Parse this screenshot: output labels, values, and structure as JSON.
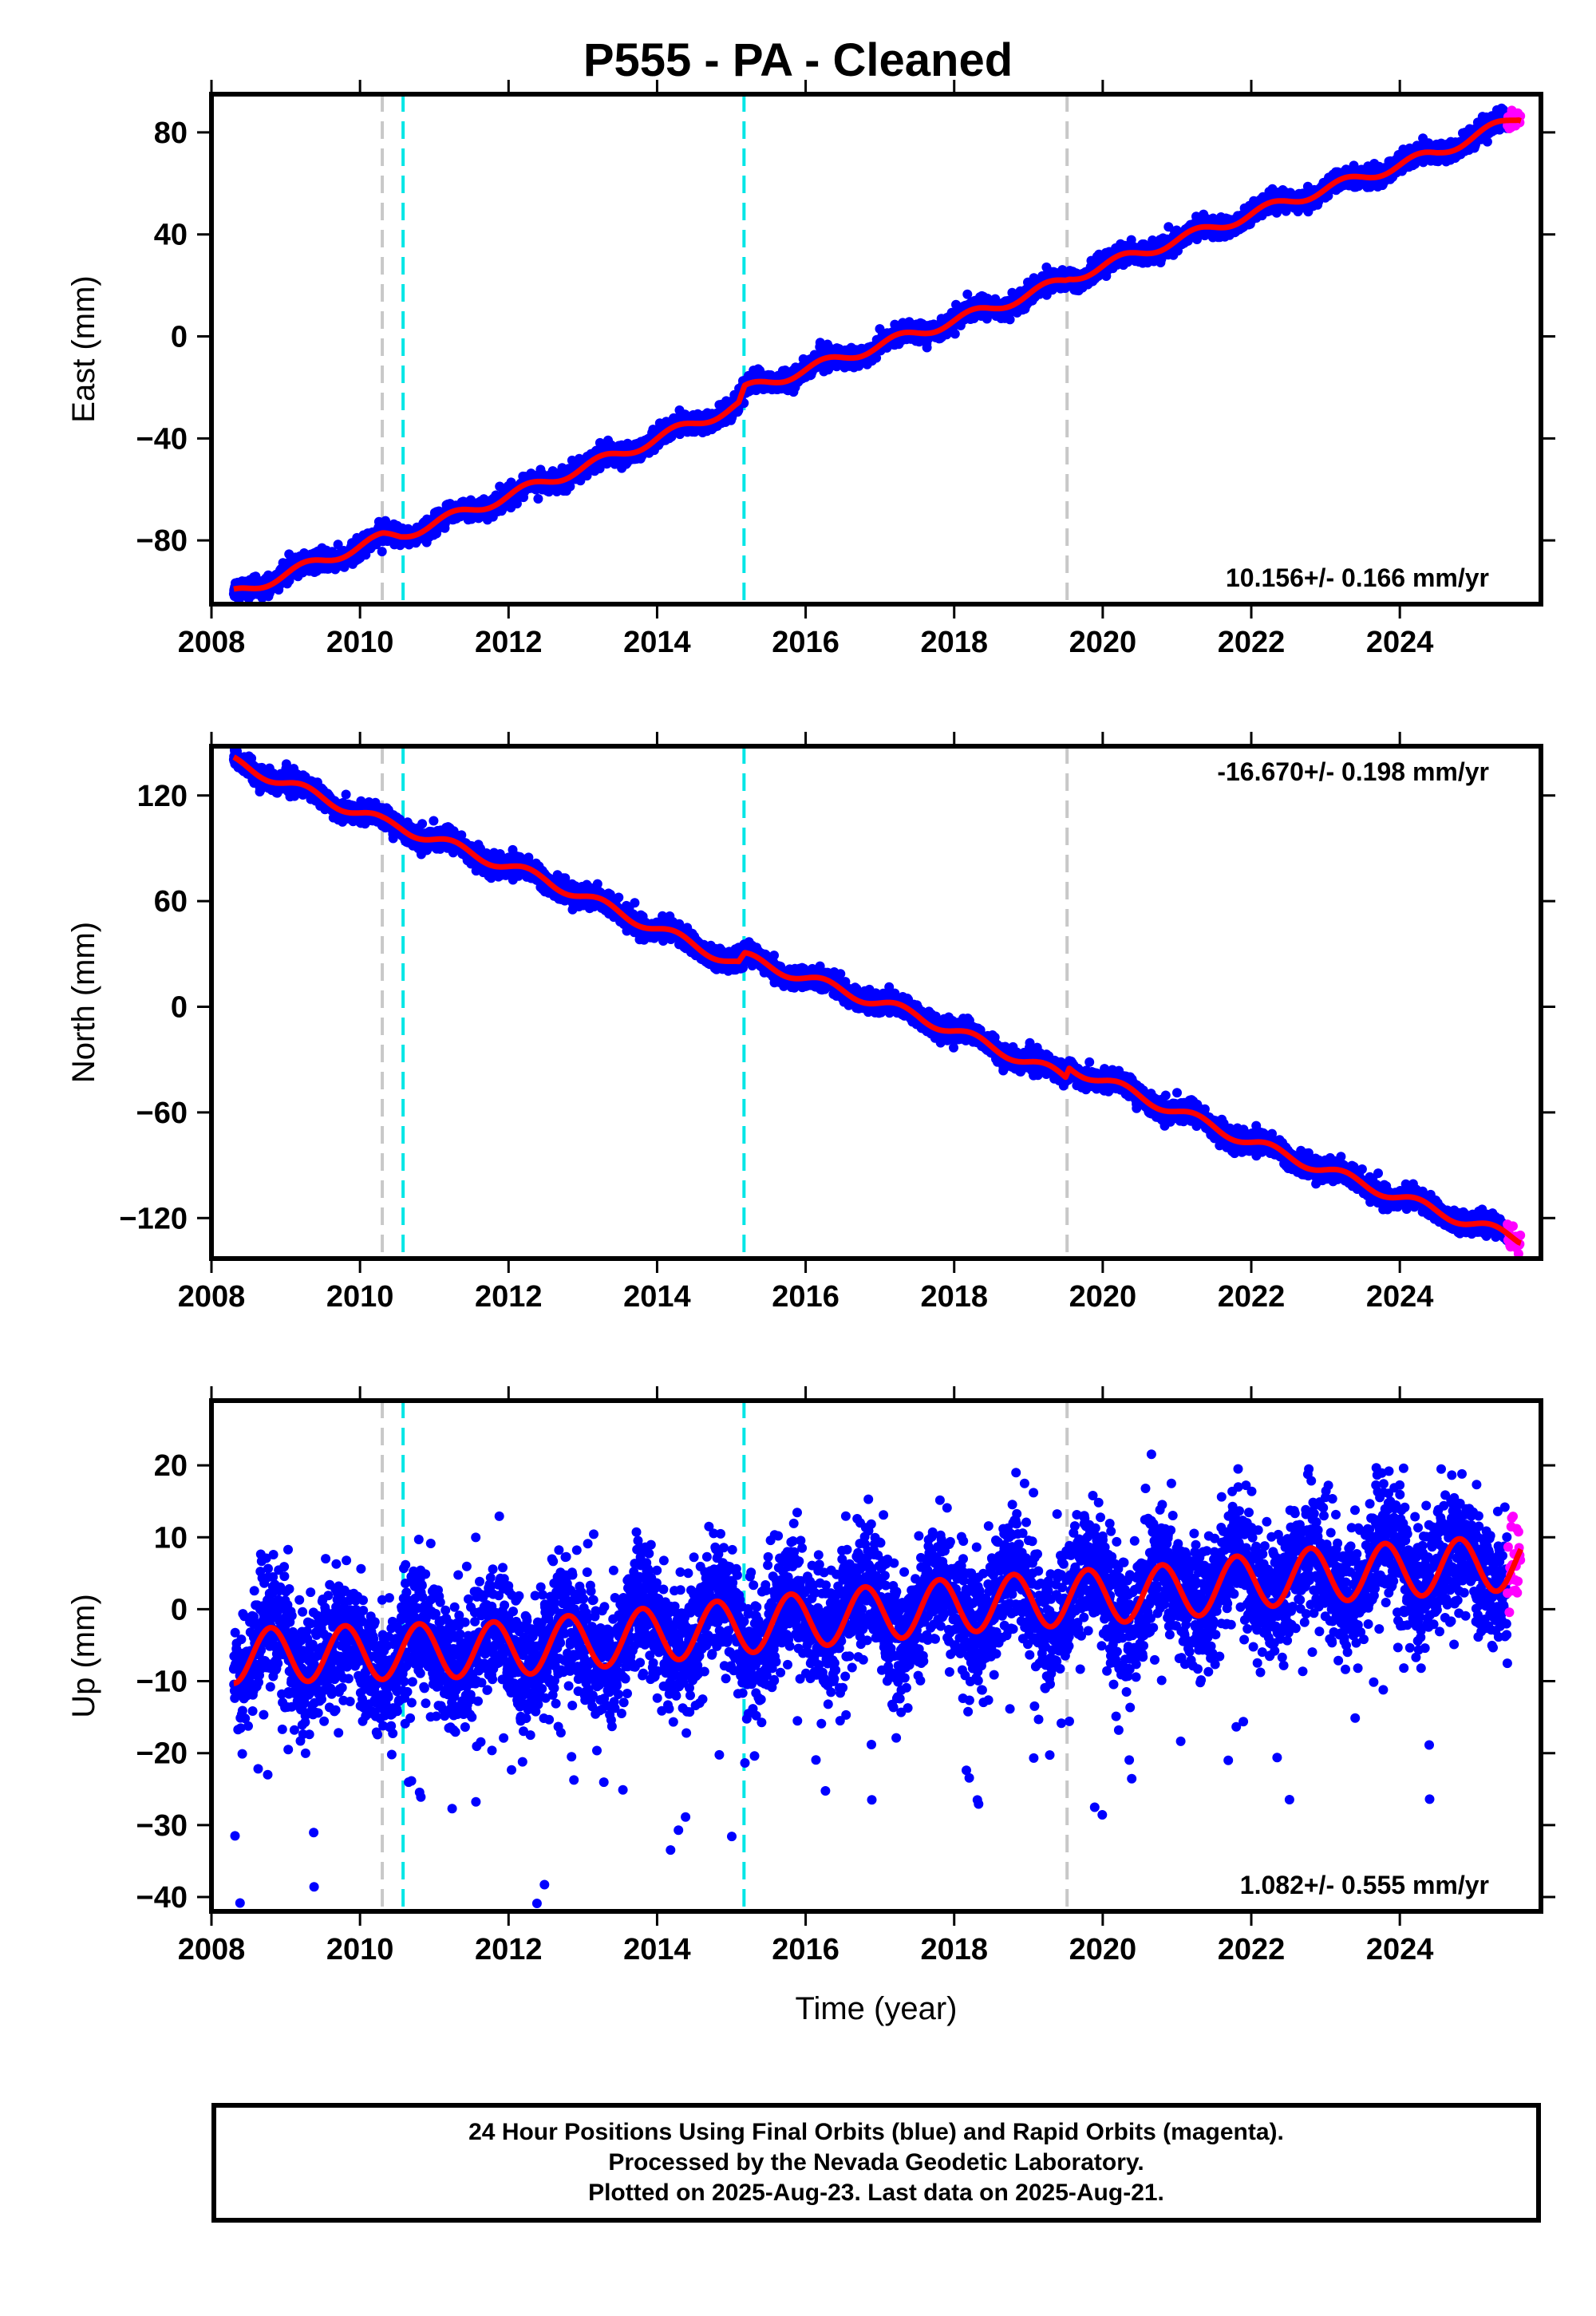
{
  "title": "P555  - PA - Cleaned",
  "xlabel": "Time (year)",
  "footnote": [
    "24 Hour Positions Using Final Orbits (blue) and Rapid Orbits (magenta).",
    "Processed by the Nevada Geodetic Laboratory.",
    "Plotted on 2025-Aug-23. Last data on 2025-Aug-21."
  ],
  "colors": {
    "final_orbits": "#0000ff",
    "rapid_orbits": "#ff00ff",
    "fit": "#ff0000",
    "event_gray": "#c8c8c8",
    "event_cyan": "#00e6e6"
  },
  "chart_data": [
    {
      "type": "scatter",
      "component": "East",
      "ylabel": "East (mm)",
      "xlim": [
        2008.0,
        2025.9
      ],
      "ylim": [
        -105,
        95
      ],
      "xticks": [
        2008,
        2010,
        2012,
        2014,
        2016,
        2018,
        2020,
        2022,
        2024
      ],
      "yticks": [
        80,
        40,
        0,
        -40,
        -80
      ],
      "ytick_labels": [
        "80",
        "40",
        "0",
        "−40",
        "−80"
      ],
      "rate_label": "10.156+/- 0.166 mm/yr",
      "rate_position": "bottom-right",
      "fit_knots": [
        [
          2008.3,
          -101
        ],
        [
          2010.3,
          -79
        ],
        [
          2010.55,
          -78
        ],
        [
          2011.5,
          -68
        ],
        [
          2013.5,
          -46
        ],
        [
          2015.1,
          -27
        ],
        [
          2015.18,
          -21
        ],
        [
          2018.5,
          11
        ],
        [
          2019.5,
          22
        ],
        [
          2019.55,
          23
        ],
        [
          2022.5,
          53
        ],
        [
          2024.5,
          72
        ],
        [
          2025.6,
          86
        ]
      ],
      "fit_seasonal_amplitude": 2,
      "scatter_sigma": 1.8,
      "rapid_orbits_range": [
        2025.45,
        2025.63
      ],
      "events_gray": [
        2010.3,
        2019.52
      ],
      "events_cyan": [
        2010.58,
        2015.17
      ]
    },
    {
      "type": "scatter",
      "component": "North",
      "ylabel": "North (mm)",
      "xlim": [
        2008.0,
        2025.9
      ],
      "ylim": [
        -143,
        148
      ],
      "xticks": [
        2008,
        2010,
        2012,
        2014,
        2016,
        2018,
        2020,
        2022,
        2024
      ],
      "yticks": [
        120,
        60,
        0,
        -60,
        -120
      ],
      "ytick_labels": [
        "120",
        "60",
        "0",
        "−60",
        "−120"
      ],
      "rate_label": "-16.670+/- 0.198 mm/yr",
      "rate_position": "top-right",
      "fit_knots": [
        [
          2008.3,
          139
        ],
        [
          2010.3,
          105
        ],
        [
          2010.55,
          102
        ],
        [
          2012.5,
          72
        ],
        [
          2015.1,
          24
        ],
        [
          2015.18,
          28
        ],
        [
          2017.5,
          -5
        ],
        [
          2019.5,
          -40
        ],
        [
          2019.55,
          -34
        ],
        [
          2022.0,
          -77
        ],
        [
          2024.5,
          -116
        ],
        [
          2025.6,
          -132
        ]
      ],
      "fit_seasonal_amplitude": 3,
      "scatter_sigma": 2.8,
      "rapid_orbits_range": [
        2025.45,
        2025.63
      ],
      "events_gray": [
        2010.3,
        2019.52
      ],
      "events_cyan": [
        2010.58,
        2015.17
      ]
    },
    {
      "type": "scatter",
      "component": "Up",
      "ylabel": "Up (mm)",
      "xlim": [
        2008.0,
        2025.9
      ],
      "ylim": [
        -42,
        29
      ],
      "xticks": [
        2008,
        2010,
        2012,
        2014,
        2016,
        2018,
        2020,
        2022,
        2024
      ],
      "yticks": [
        20,
        10,
        0,
        -10,
        -20,
        -30,
        -40
      ],
      "ytick_labels": [
        "20",
        "10",
        "0",
        "−10",
        "−20",
        "−30",
        "−40"
      ],
      "rate_label": "1.082+/- 0.555 mm/yr",
      "rate_position": "bottom-right",
      "fit_knots": [
        [
          2008.3,
          -6.5
        ],
        [
          2012.0,
          -5.5
        ],
        [
          2015.0,
          -2.5
        ],
        [
          2018.0,
          0.5
        ],
        [
          2021.0,
          2.5
        ],
        [
          2022.5,
          4.5
        ],
        [
          2025.6,
          6.5
        ]
      ],
      "fit_seasonal_amplitude": 3.8,
      "fit_seasonal_phase": 0.55,
      "scatter_sigma": 4.3,
      "rapid_orbits_range": [
        2025.45,
        2025.63
      ],
      "events_gray": [
        2010.3,
        2019.52
      ],
      "events_cyan": [
        2010.58,
        2015.17
      ]
    }
  ]
}
